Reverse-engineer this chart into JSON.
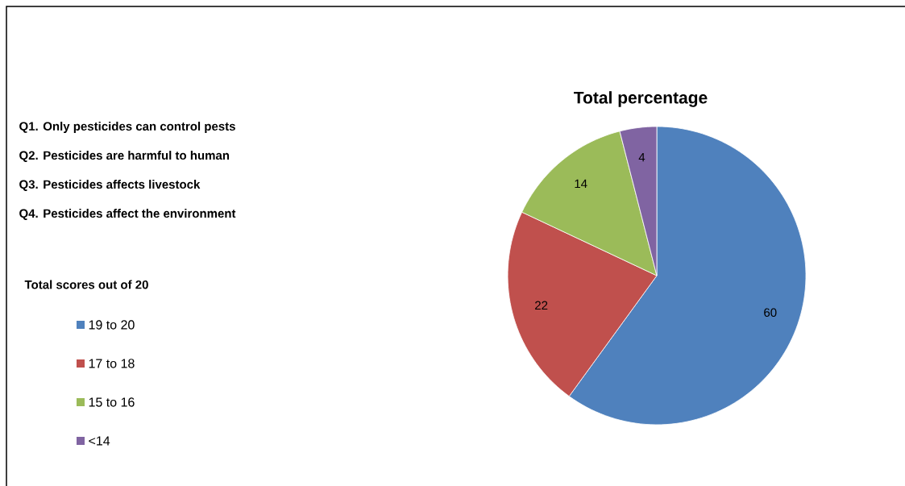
{
  "chart_data": {
    "type": "pie",
    "title": "Total percentage",
    "legend_title": "Total scores out of 20",
    "categories": [
      "19 to 20",
      "17 to 18",
      "15 to 16",
      "<14"
    ],
    "values": [
      60,
      22,
      14,
      4
    ],
    "colors": [
      "#4f81bd",
      "#c0504d",
      "#9bbb59",
      "#8064a2"
    ],
    "data_labels": true,
    "legend": "left",
    "annotations": [
      "Q1. Only pesticides can control pests",
      "Q2. Pesticides are harmful to human",
      "Q3. Pesticides affects livestock",
      "Q4. Pesticides affect the environment"
    ]
  }
}
